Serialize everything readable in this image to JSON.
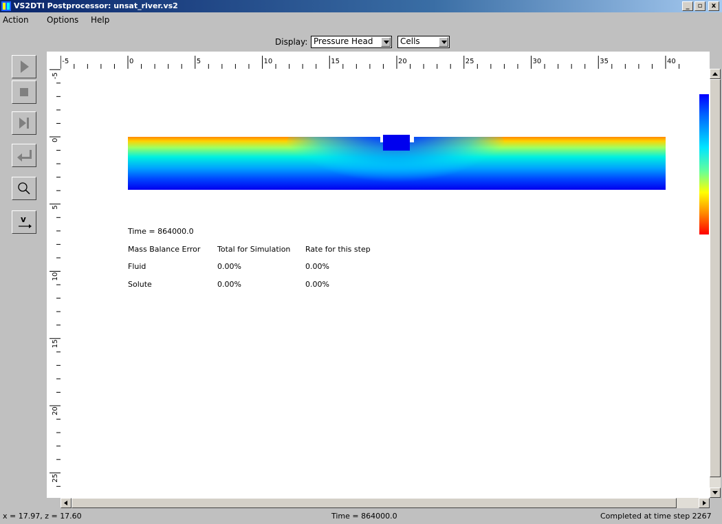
{
  "window": {
    "title": "VS2DTI Postprocessor: unsat_river.vs2",
    "controls": [
      "minimize",
      "maximize",
      "close"
    ]
  },
  "menu": [
    "Action",
    "Options",
    "Help"
  ],
  "display": {
    "label": "Display:",
    "variable": "Pressure Head",
    "mode": "Cells"
  },
  "toolbar": [
    {
      "name": "play-icon",
      "enabled": false
    },
    {
      "name": "stop-icon",
      "enabled": false
    },
    {
      "name": "step-icon",
      "enabled": false
    },
    {
      "name": "rewind-icon",
      "enabled": false
    },
    {
      "name": "zoom-icon",
      "enabled": true
    },
    {
      "name": "velocity-icon",
      "enabled": true
    }
  ],
  "x_axis_labels": [
    "-5",
    "0",
    "5",
    "10",
    "15",
    "20",
    "25",
    "30",
    "35",
    "40"
  ],
  "z_axis_labels": [
    "-5",
    "0",
    "5",
    "10",
    "15",
    "20",
    "25"
  ],
  "colors": {
    "high": "#ff0000",
    "mid": "#ffff00",
    "low": "#0000ff"
  },
  "info": {
    "time_line": "Time = 864000.0",
    "header": [
      "Mass Balance Error",
      "Total for Simulation",
      "Rate for this step"
    ],
    "rows": [
      [
        "Fluid",
        "0.00%",
        "0.00%"
      ],
      [
        "Solute",
        "0.00%",
        "0.00%"
      ]
    ]
  },
  "status": {
    "coords": "x = 17.97, z = 17.60",
    "time": "Time = 864000.0",
    "completed": "Completed at time step 2267"
  }
}
